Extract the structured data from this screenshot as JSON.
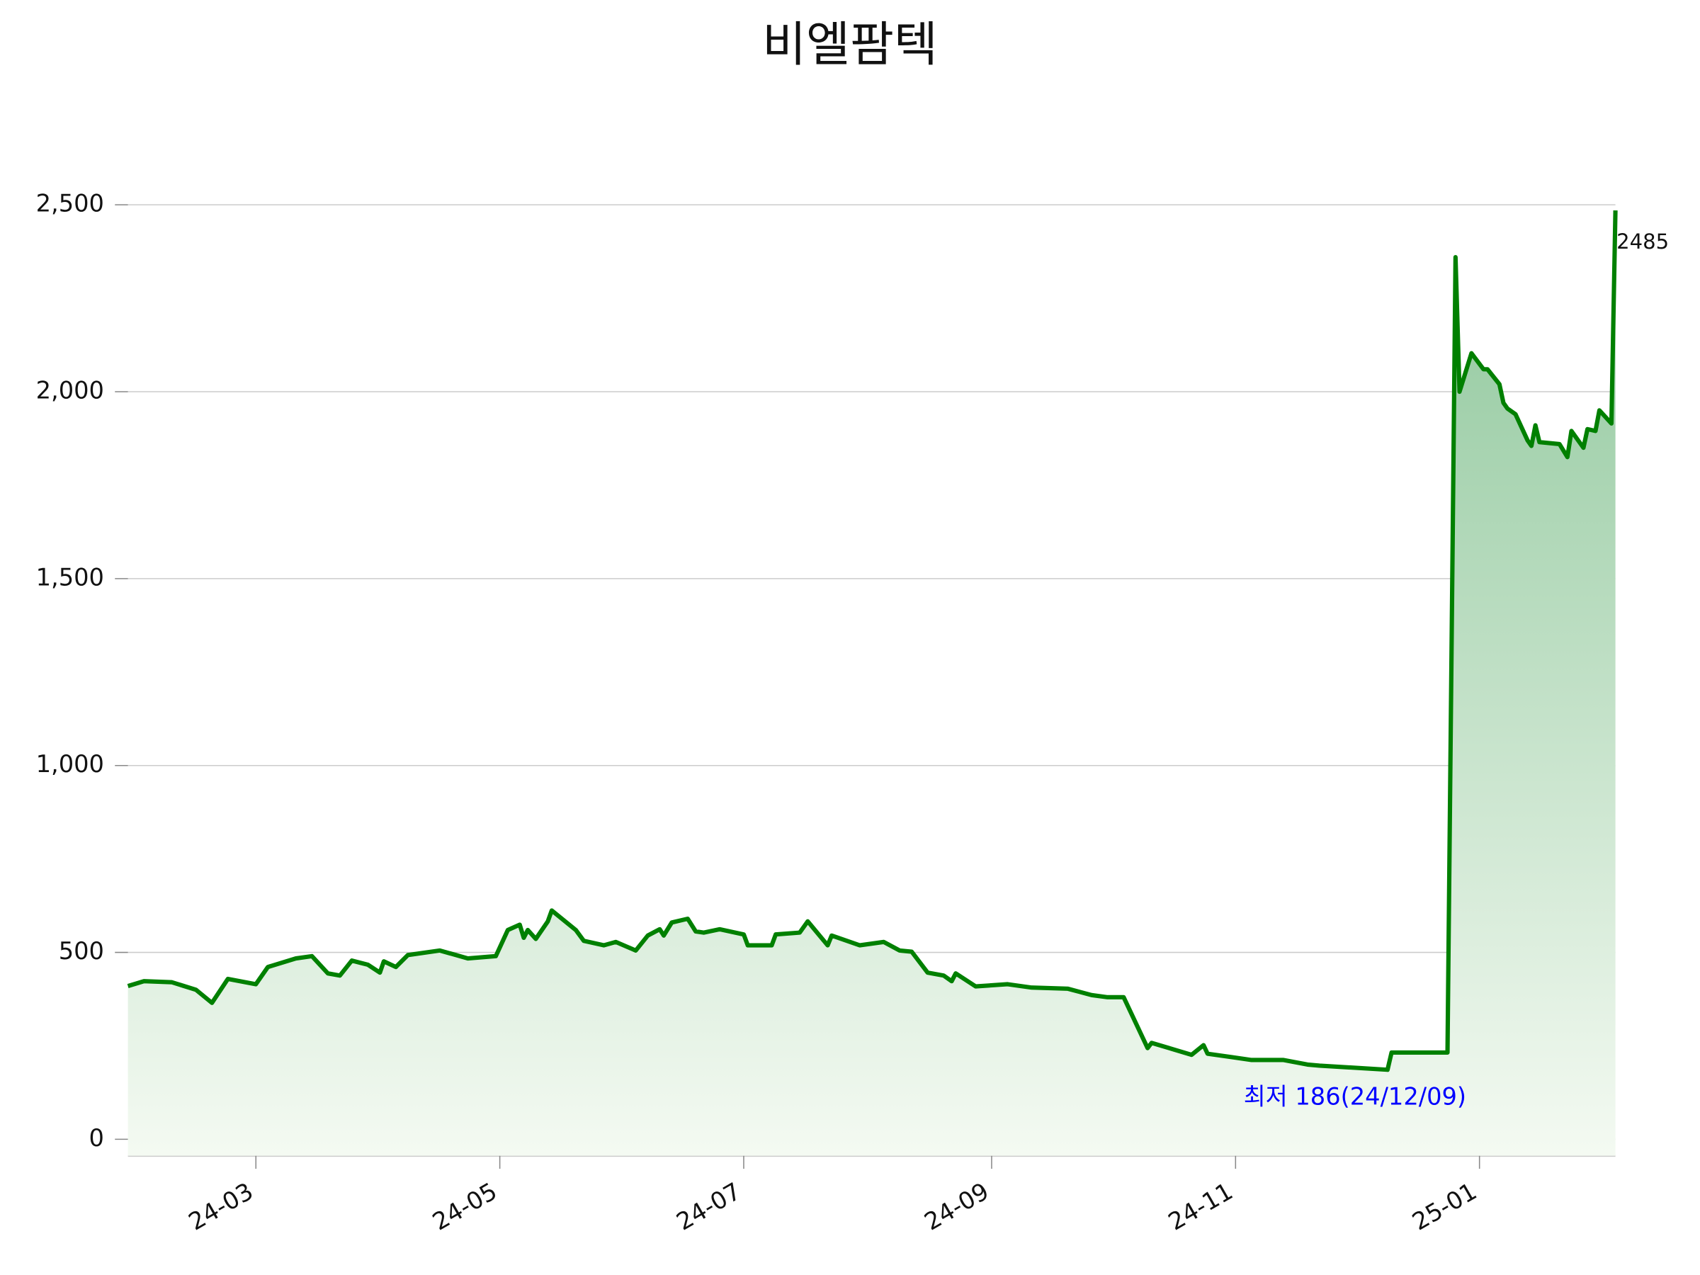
{
  "chart_data": {
    "type": "line",
    "title": "비엘팜텍",
    "color": "#008000",
    "area_gradient": [
      "#8dc69a",
      "#f4faf2"
    ],
    "grid": true,
    "x": [
      "2024-01-29",
      "2024-02-02",
      "2024-02-09",
      "2024-02-15",
      "2024-02-19",
      "2024-02-23",
      "2024-03-01",
      "2024-03-04",
      "2024-03-11",
      "2024-03-15",
      "2024-03-19",
      "2024-03-22",
      "2024-03-25",
      "2024-03-29",
      "2024-04-01",
      "2024-04-02",
      "2024-04-05",
      "2024-04-08",
      "2024-04-16",
      "2024-04-23",
      "2024-04-30",
      "2024-05-03",
      "2024-05-06",
      "2024-05-07",
      "2024-05-08",
      "2024-05-10",
      "2024-05-13",
      "2024-05-14",
      "2024-05-20",
      "2024-05-22",
      "2024-05-27",
      "2024-05-30",
      "2024-06-04",
      "2024-06-07",
      "2024-06-10",
      "2024-06-11",
      "2024-06-13",
      "2024-06-17",
      "2024-06-19",
      "2024-06-21",
      "2024-06-25",
      "2024-07-01",
      "2024-07-02",
      "2024-07-08",
      "2024-07-09",
      "2024-07-15",
      "2024-07-17",
      "2024-07-22",
      "2024-07-23",
      "2024-07-30",
      "2024-08-05",
      "2024-08-09",
      "2024-08-12",
      "2024-08-16",
      "2024-08-20",
      "2024-08-22",
      "2024-08-23",
      "2024-08-28",
      "2024-09-05",
      "2024-09-11",
      "2024-09-20",
      "2024-09-26",
      "2024-09-30",
      "2024-10-04",
      "2024-10-10",
      "2024-10-11",
      "2024-10-21",
      "2024-10-24",
      "2024-10-25",
      "2024-10-31",
      "2024-11-05",
      "2024-11-13",
      "2024-11-19",
      "2024-11-22",
      "2024-12-09",
      "2024-12-10",
      "2024-12-24",
      "2024-12-26",
      "2024-12-27",
      "2024-12-30",
      "2025-01-02",
      "2025-01-03",
      "2025-01-06",
      "2025-01-07",
      "2025-01-08",
      "2025-01-10",
      "2025-01-13",
      "2025-01-14",
      "2025-01-15",
      "2025-01-16",
      "2025-01-21",
      "2025-01-23",
      "2025-01-24",
      "2025-01-27",
      "2025-01-28",
      "2025-01-30",
      "2025-01-31",
      "2025-02-03",
      "2025-02-04"
    ],
    "values": [
      410,
      423,
      420,
      400,
      365,
      429,
      415,
      461,
      484,
      490,
      444,
      438,
      478,
      467,
      446,
      476,
      461,
      493,
      505,
      484,
      490,
      560,
      574,
      539,
      560,
      536,
      583,
      612,
      560,
      531,
      519,
      528,
      505,
      545,
      562,
      545,
      580,
      590,
      556,
      553,
      562,
      548,
      519,
      519,
      548,
      553,
      583,
      519,
      545,
      519,
      528,
      505,
      502,
      446,
      438,
      423,
      444,
      409,
      415,
      406,
      403,
      386,
      380,
      380,
      244,
      258,
      226,
      252,
      229,
      220,
      212,
      212,
      200,
      197,
      186,
      232,
      232,
      2360,
      2000,
      2103,
      2060,
      2060,
      2020,
      1970,
      1955,
      1940,
      1870,
      1855,
      1910,
      1865,
      1860,
      1825,
      1895,
      1850,
      1900,
      1895,
      1950,
      1915,
      2485
    ],
    "min_label": "최저 186(24/12/09)",
    "xlim": [
      "2024-01-29",
      "2025-02-04"
    ],
    "xticks": [
      {
        "value": "2024-03-01",
        "label": "24-03"
      },
      {
        "value": "2024-05-01",
        "label": "24-05"
      },
      {
        "value": "2024-07-01",
        "label": "24-07"
      },
      {
        "value": "2024-09-01",
        "label": "24-09"
      },
      {
        "value": "2024-11-01",
        "label": "24-11"
      },
      {
        "value": "2025-01-01",
        "label": "25-01"
      }
    ],
    "ylim": [
      -44,
      2610
    ],
    "yticks": [
      0,
      500,
      {
        "value": 1000,
        "label": "1,000"
      },
      {
        "value": 1500,
        "label": "1,500"
      },
      {
        "value": 2000,
        "label": "2,000"
      },
      {
        "value": 2500,
        "label": "2,500"
      }
    ]
  }
}
